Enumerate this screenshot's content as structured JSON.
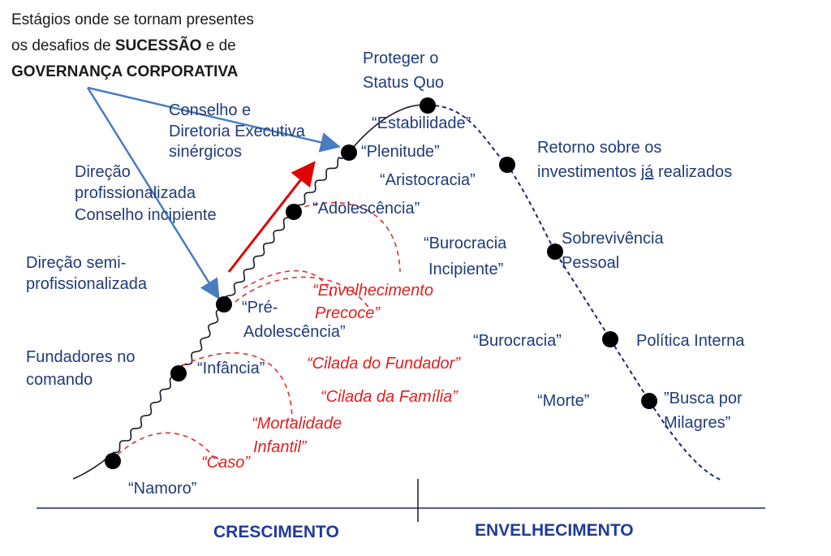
{
  "callout": {
    "line1": "Estágios onde se tornam presentes",
    "line2": [
      "os desafios de ",
      "SUCESSÃO",
      " e de"
    ],
    "line3": "GOVERNANÇA CORPORATIVA"
  },
  "stages": [
    {
      "lines": [
        "“Namoro”"
      ]
    },
    {
      "lines": [
        "“Infância”"
      ]
    },
    {
      "lines": [
        "“Pré-",
        "Adolescência”"
      ]
    },
    {
      "lines": [
        "“Adolescência”"
      ]
    },
    {
      "lines": [
        "“Plenitude”"
      ]
    },
    {
      "lines": [
        "“Estabilidade”"
      ]
    },
    {
      "lines": [
        "“Aristocracia”"
      ]
    },
    {
      "lines": [
        "“Burocracia",
        "Incipiente”"
      ]
    },
    {
      "lines": [
        "“Burocracia”"
      ]
    },
    {
      "lines": [
        "“Morte”"
      ]
    }
  ],
  "governance": [
    {
      "lines": [
        "Fundadores no",
        "comando"
      ]
    },
    {
      "lines": [
        "Direção semi-",
        "profissionalizada"
      ]
    },
    {
      "lines": [
        "Direção",
        "profissionalizada",
        "Conselho incipiente"
      ]
    },
    {
      "lines": [
        "Conselho e",
        "Diretoria Executiva",
        "sinérgicos"
      ]
    }
  ],
  "aging_focus": [
    {
      "lines": [
        "Proteger o",
        "Status Quo"
      ]
    },
    {
      "lines": [
        "Retorno sobre os"
      ],
      "line2": [
        "investimentos ",
        "já",
        " realizados"
      ]
    },
    {
      "lines": [
        "Sobrevivência",
        "Pessoal"
      ]
    },
    {
      "lines": [
        "Política Interna"
      ]
    },
    {
      "lines": [
        "”Busca por",
        "Milagres”"
      ]
    }
  ],
  "traps": [
    {
      "lines": [
        "“Caso”"
      ]
    },
    {
      "lines": [
        "“Mortalidade",
        "Infantil”"
      ]
    },
    {
      "lines": [
        "“Cilada da Família”"
      ]
    },
    {
      "lines": [
        "“Cilada do Fundador”"
      ]
    },
    {
      "lines": [
        "“Envelhecimento",
        "Precoce”"
      ]
    }
  ],
  "phases": [
    "CRESCIMENTO",
    "ENVELHECIMENTO"
  ]
}
